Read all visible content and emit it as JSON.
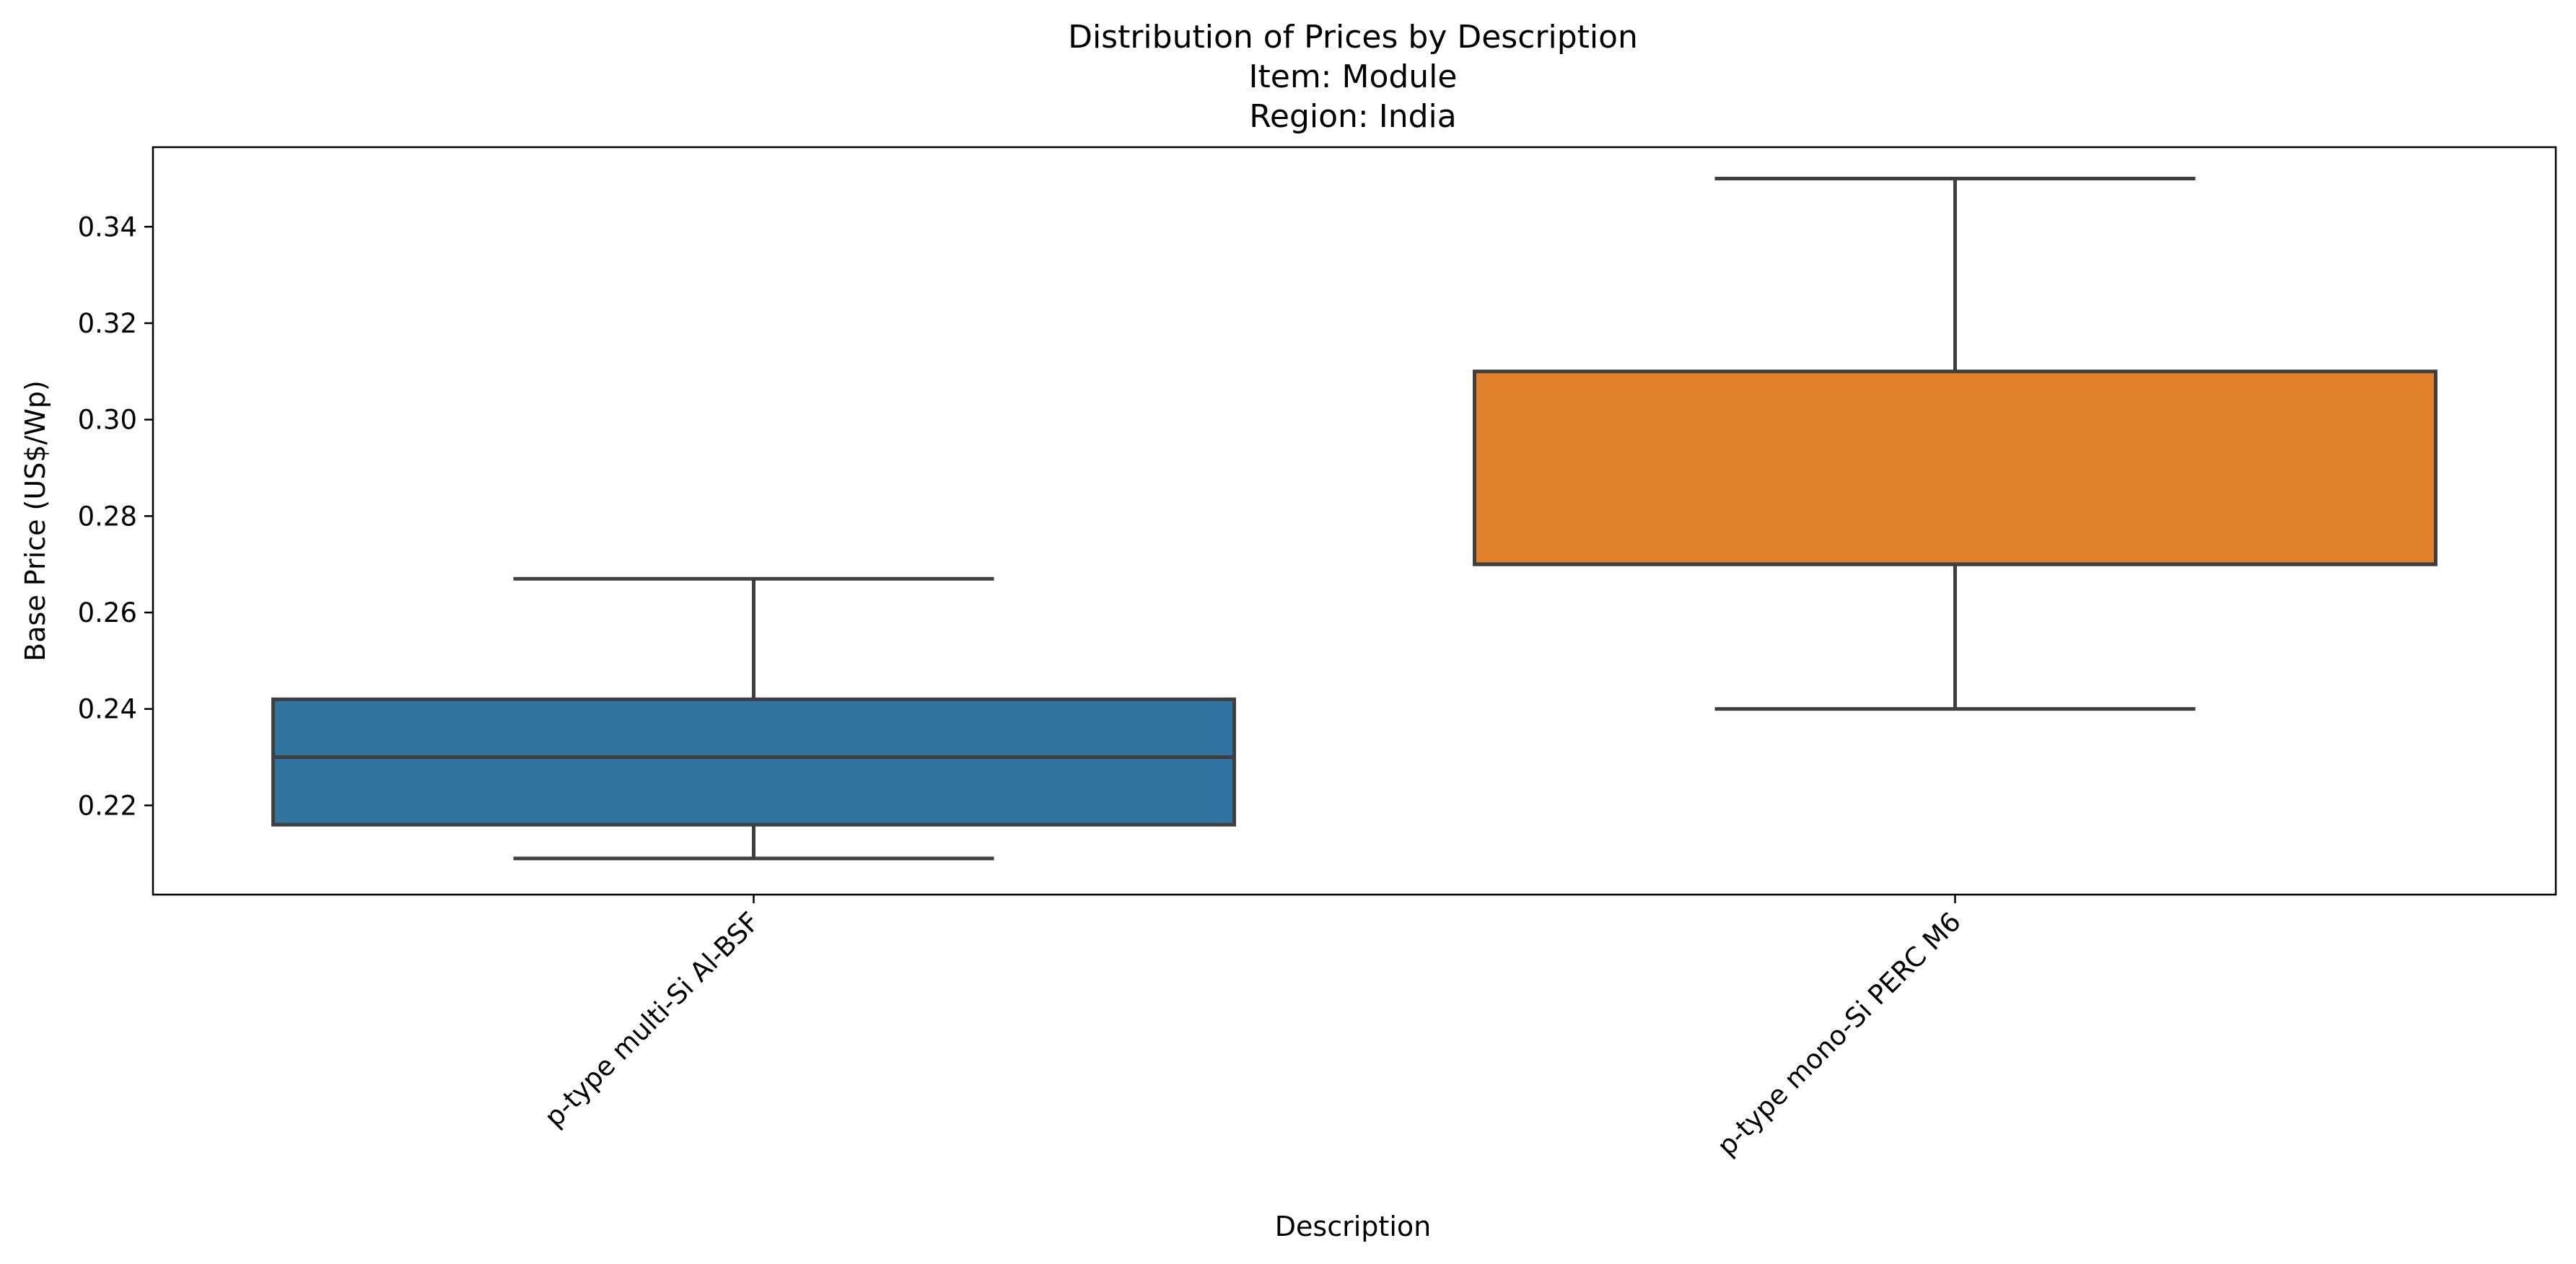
{
  "chart_data": {
    "type": "box",
    "title": [
      "Distribution of Prices by Description",
      "Item: Module",
      "Region: India"
    ],
    "xlabel": "Description",
    "ylabel": "Base Price (US$/Wp)",
    "ylim": [
      0.2015,
      0.3565
    ],
    "yticks": [
      0.22,
      0.24,
      0.26,
      0.28,
      0.3,
      0.32,
      0.34
    ],
    "ytick_labels": [
      "0.22",
      "0.24",
      "0.26",
      "0.28",
      "0.30",
      "0.32",
      "0.34"
    ],
    "grid": false,
    "legend": "none",
    "categories": [
      "p-type multi-Si Al-BSF",
      "p-type mono-Si PERC M6"
    ],
    "boxes": [
      {
        "category": "p-type multi-Si Al-BSF",
        "whisker_low": 0.209,
        "q1": 0.216,
        "median": 0.23,
        "q3": 0.242,
        "whisker_high": 0.267,
        "color": "#3274a1"
      },
      {
        "category": "p-type mono-Si PERC M6",
        "whisker_low": 0.24,
        "q1": 0.27,
        "median": 0.27,
        "q3": 0.31,
        "whisker_high": 0.35,
        "color": "#e1812c"
      }
    ],
    "edge_color": "#3f3f3f"
  }
}
